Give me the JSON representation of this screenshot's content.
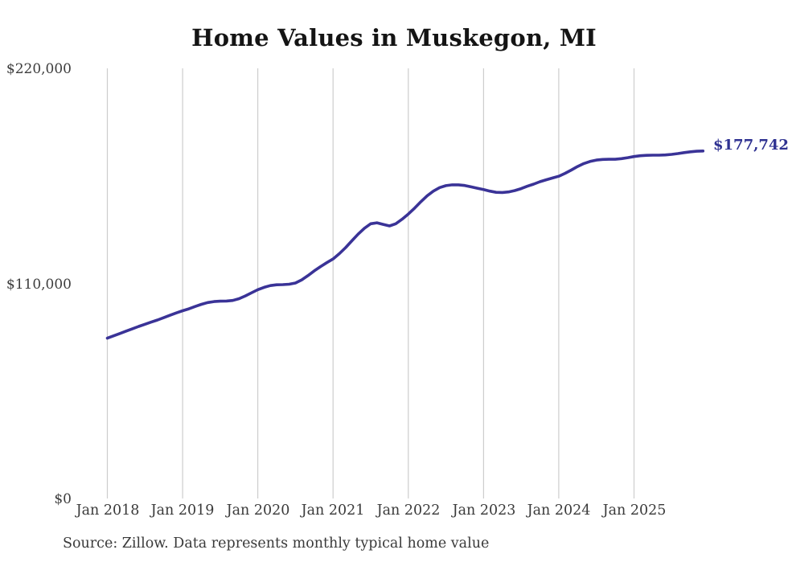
{
  "header": {
    "title": "Home Values in Muskegon, MI"
  },
  "colors": {
    "line": "#3a3397",
    "end_label": "#2e3191",
    "grid": "#cdcdcd",
    "axis_text": "#3a3a3a",
    "title_text": "#141414"
  },
  "footer": {
    "source_note": "Source: Zillow. Data represents monthly typical home value"
  },
  "chart_data": {
    "type": "line",
    "title": "Home Values in Muskegon, MI",
    "x_unit": "month",
    "x_start": "2018-01",
    "x_end": "2025-12",
    "x_interval_months": 1,
    "x_tick_labels": [
      "Jan 2018",
      "Jan 2019",
      "Jan 2020",
      "Jan 2021",
      "Jan 2022",
      "Jan 2023",
      "Jan 2024",
      "Jan 2025"
    ],
    "ylim": [
      0,
      220000
    ],
    "y_tick_values": [
      0,
      110000,
      220000
    ],
    "y_tick_labels": [
      "$0",
      "$110,000",
      "$220,000"
    ],
    "grid": "vertical-only",
    "legend": "none",
    "last_point": {
      "label": "$177,742",
      "value": 177742,
      "month": "2025-12"
    },
    "series": [
      {
        "name": "typical-home-value",
        "values": [
          82000,
          83200,
          84400,
          85600,
          86800,
          88000,
          89100,
          90200,
          91300,
          92500,
          93700,
          94900,
          96000,
          97000,
          98200,
          99300,
          100200,
          100700,
          100900,
          101000,
          101300,
          102200,
          103600,
          105200,
          106800,
          108000,
          108900,
          109300,
          109400,
          109600,
          110200,
          111800,
          114000,
          116400,
          118600,
          120600,
          122500,
          125200,
          128300,
          131800,
          135200,
          138200,
          140500,
          141000,
          140200,
          139400,
          140500,
          142800,
          145500,
          148500,
          151800,
          154800,
          157200,
          159000,
          160000,
          160400,
          160400,
          160100,
          159400,
          158700,
          158000,
          157200,
          156600,
          156500,
          156800,
          157500,
          158500,
          159700,
          160800,
          162000,
          163000,
          163900,
          164800,
          166300,
          168000,
          169800,
          171300,
          172400,
          173100,
          173400,
          173500,
          173500,
          173800,
          174300,
          174900,
          175300,
          175500,
          175600,
          175600,
          175700,
          176000,
          176400,
          176900,
          177300,
          177600,
          177742
        ]
      }
    ]
  }
}
